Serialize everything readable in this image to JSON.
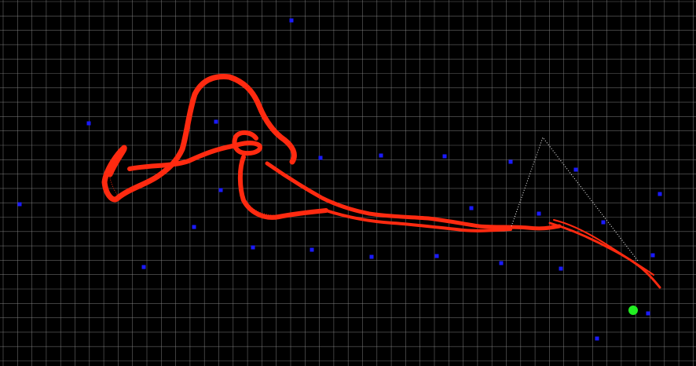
{
  "scene": {
    "background_color": "#000000",
    "grid_color": "#8a8a8a",
    "trajectory_color": "#ff2a10",
    "landmark_color": "#1a1aff",
    "robot_color": "#22ee22",
    "frustum_color": "#e8e8e8"
  }
}
